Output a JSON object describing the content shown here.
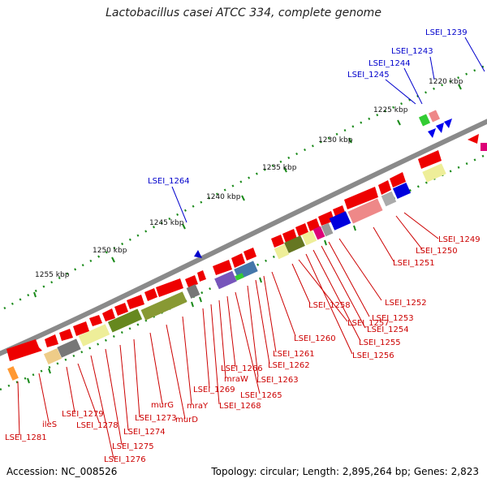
{
  "title": "Lactobacillus casei ATCC 334, complete genome",
  "accession": "Accession: NC_008526",
  "summary": "Topology: circular; Length: 2,895,264 bp; Genes: 2,823",
  "scale": [
    {
      "label": "1220 kbp"
    },
    {
      "label": "1225 kbp"
    },
    {
      "label": "1230 kbp"
    },
    {
      "label": "1235 kbp"
    },
    {
      "label": "1240 kbp"
    },
    {
      "label": "1245 kbp"
    },
    {
      "label": "1250 kbp"
    },
    {
      "label": "1255 kbp"
    }
  ],
  "blue_labels": [
    "LSEI_1239",
    "LSEI_1243",
    "LSEI_1244",
    "LSEI_1245",
    "LSEI_1264"
  ],
  "red_labels": [
    "LSEI_1249",
    "LSEI_1250",
    "LSEI_1251",
    "LSEI_1252",
    "LSEI_1253",
    "LSEI_1254",
    "LSEI_1255",
    "LSEI_1256",
    "LSEI_1257",
    "LSEI_1258",
    "LSEI_1260",
    "LSEI_1261",
    "LSEI_1262",
    "LSEI_1263",
    "LSEI_1265",
    "LSEI_1266",
    "mraW",
    "LSEI_1268",
    "LSEI_1269",
    "mraY",
    "murD",
    "murG",
    "LSEI_1273",
    "LSEI_1274",
    "LSEI_1275",
    "LSEI_1276",
    "LSEI_1278",
    "LSEI_1279",
    "ileS",
    "LSEI_1281"
  ],
  "colors": {
    "gene_red": "#ee0000",
    "label_red": "#cc0000",
    "label_blue": "#0000cc",
    "backbone": "#888888",
    "tick_green": "#1a8a1a"
  }
}
